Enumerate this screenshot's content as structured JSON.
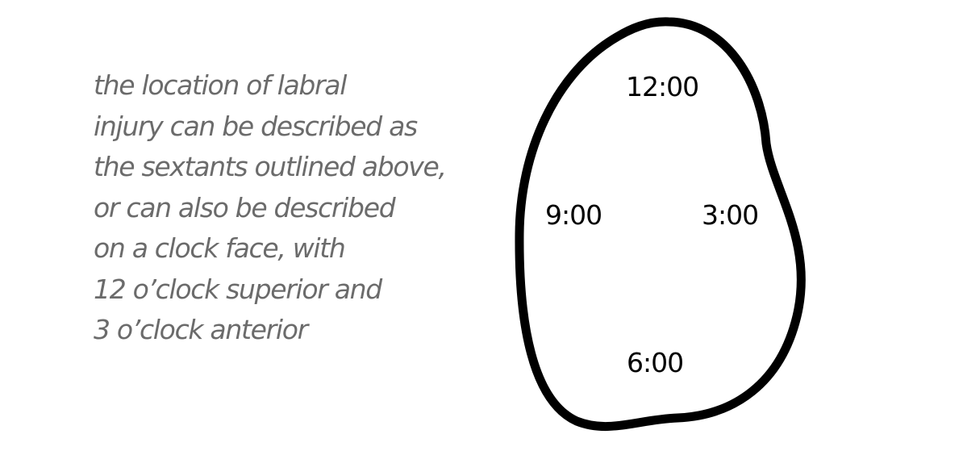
{
  "caption": {
    "lines": [
      "the location of labral",
      "injury can be described as",
      "the sextants outlined above,",
      "or can also be described",
      "on a clock face, with",
      "12 o’clock superior and",
      "3 o’clock anterior"
    ],
    "color": "#6b6b6b"
  },
  "clock_face": {
    "labels": {
      "twelve": "12:00",
      "three": "3:00",
      "six": "6:00",
      "nine": "9:00"
    },
    "outline_color": "#000000"
  }
}
